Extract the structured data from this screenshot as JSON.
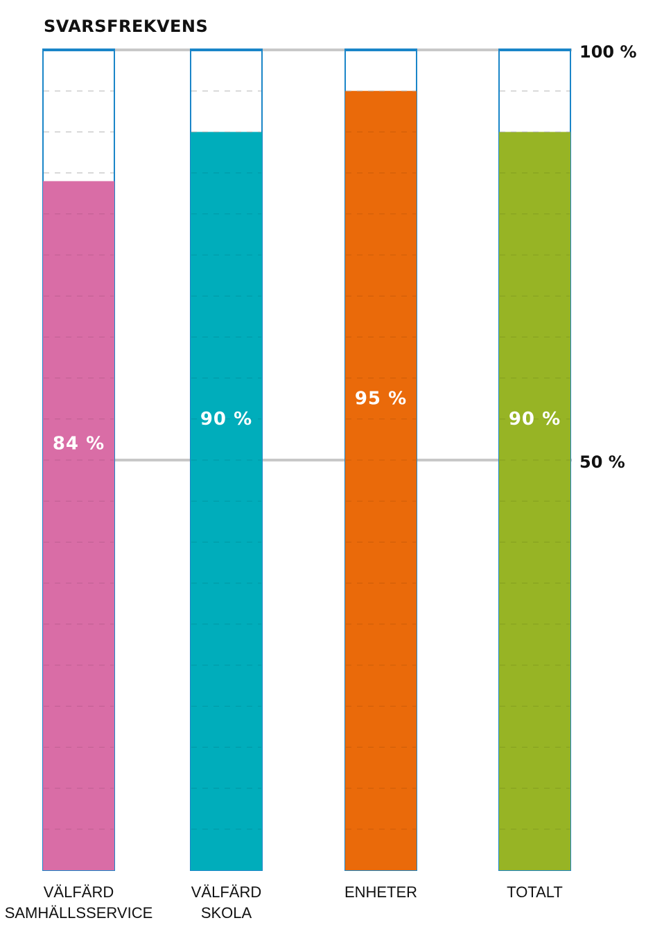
{
  "chart_data": {
    "type": "bar",
    "title": "SVARSFREKVENS",
    "categories": [
      [
        "VÄLFÄRD",
        "SAMHÄLLSSERVICE"
      ],
      [
        "VÄLFÄRD",
        "SKOLA"
      ],
      [
        "ENHETER"
      ],
      [
        "TOTALT"
      ]
    ],
    "values": [
      84,
      90,
      95,
      90
    ],
    "value_labels": [
      "84 %",
      "90 %",
      "95 %",
      "90 %"
    ],
    "colors": [
      "#d96da6",
      "#00adbb",
      "#ea6a0a",
      "#97b425"
    ],
    "outline_color": "#1a85c8",
    "gridline_color": "#c8c8c8",
    "ylim": [
      0,
      100
    ],
    "y_ticks": [
      {
        "value": 100,
        "label": "100 %"
      },
      {
        "value": 50,
        "label": "50 %"
      }
    ],
    "grid": true
  }
}
